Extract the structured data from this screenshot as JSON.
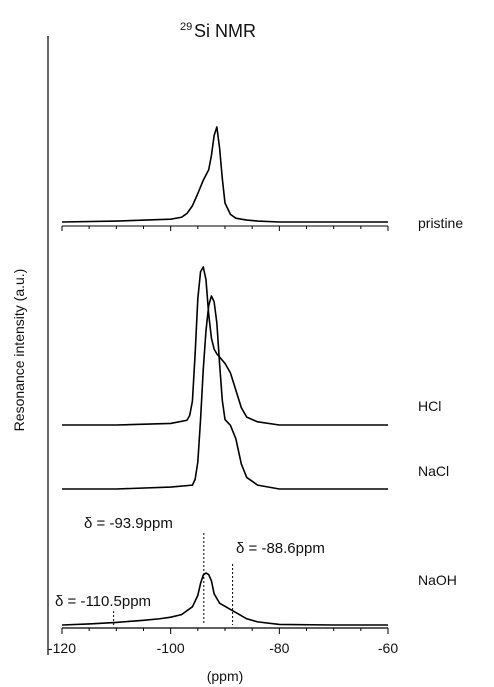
{
  "chart_data": {
    "type": "line",
    "title": "Si NMR",
    "title_superscript": "29",
    "xlabel": "(ppm)",
    "ylabel": "Resonance intensity (a.u.)",
    "xlim": [
      -120,
      -60
    ],
    "xticks": [
      "-120",
      "-100",
      "-80",
      "-60"
    ],
    "x_unit": "ppm",
    "grid": false,
    "series": [
      {
        "name": "pristine",
        "x": [
          -120,
          -110,
          -100,
          -98,
          -97,
          -96,
          -95,
          -94,
          -93,
          -92.5,
          -92,
          -91.5,
          -91,
          -90.5,
          -90,
          -89,
          -88,
          -87,
          -86,
          -84,
          -80,
          -70,
          -60
        ],
        "y": [
          0.0,
          0.01,
          0.03,
          0.05,
          0.09,
          0.17,
          0.3,
          0.44,
          0.55,
          0.7,
          0.91,
          1.0,
          0.78,
          0.46,
          0.2,
          0.08,
          0.04,
          0.03,
          0.02,
          0.01,
          0.0,
          0.0,
          0.0
        ]
      },
      {
        "name": "HCl",
        "x": [
          -120,
          -110,
          -100,
          -97,
          -96.5,
          -96,
          -95.5,
          -95,
          -94.5,
          -94,
          -93.5,
          -93,
          -92.5,
          -92,
          -91.5,
          -91,
          -90,
          -89,
          -88,
          -87,
          -86,
          -84,
          -80,
          -70,
          -60
        ],
        "y": [
          0.0,
          0.0,
          0.01,
          0.03,
          0.06,
          0.15,
          0.45,
          0.8,
          0.97,
          1.0,
          0.92,
          0.7,
          0.55,
          0.48,
          0.45,
          0.43,
          0.39,
          0.33,
          0.22,
          0.11,
          0.05,
          0.02,
          0.0,
          0.0,
          0.0
        ]
      },
      {
        "name": "NaCl",
        "x": [
          -120,
          -110,
          -100,
          -96,
          -95.5,
          -95,
          -94.5,
          -94,
          -93.5,
          -93,
          -92.5,
          -92,
          -91.5,
          -91,
          -90.5,
          -90,
          -89,
          -88,
          -87,
          -86,
          -84,
          -80,
          -70,
          -60
        ],
        "y": [
          0.0,
          0.0,
          0.01,
          0.02,
          0.05,
          0.14,
          0.36,
          0.62,
          0.82,
          0.95,
          1.0,
          0.97,
          0.86,
          0.65,
          0.46,
          0.36,
          0.33,
          0.26,
          0.13,
          0.06,
          0.02,
          0.0,
          0.0,
          0.0
        ]
      },
      {
        "name": "NaOH",
        "x": [
          -120,
          -115,
          -110,
          -105,
          -102,
          -100,
          -98,
          -96,
          -95,
          -94.5,
          -94,
          -93.5,
          -93,
          -92.5,
          -92,
          -91,
          -90,
          -89,
          -88,
          -87,
          -86,
          -84,
          -80,
          -70,
          -60
        ],
        "y": [
          0.0,
          0.02,
          0.05,
          0.09,
          0.12,
          0.15,
          0.2,
          0.35,
          0.57,
          0.8,
          0.96,
          1.0,
          0.97,
          0.85,
          0.6,
          0.42,
          0.36,
          0.3,
          0.24,
          0.18,
          0.12,
          0.06,
          0.01,
          0.0,
          0.0
        ]
      }
    ],
    "annotations": [
      {
        "text": "δ = -93.9ppm",
        "x": -93.9
      },
      {
        "text": "δ = -88.6ppm",
        "x": -88.6
      },
      {
        "text": "δ = -110.5ppm",
        "x": -110.5
      }
    ]
  }
}
